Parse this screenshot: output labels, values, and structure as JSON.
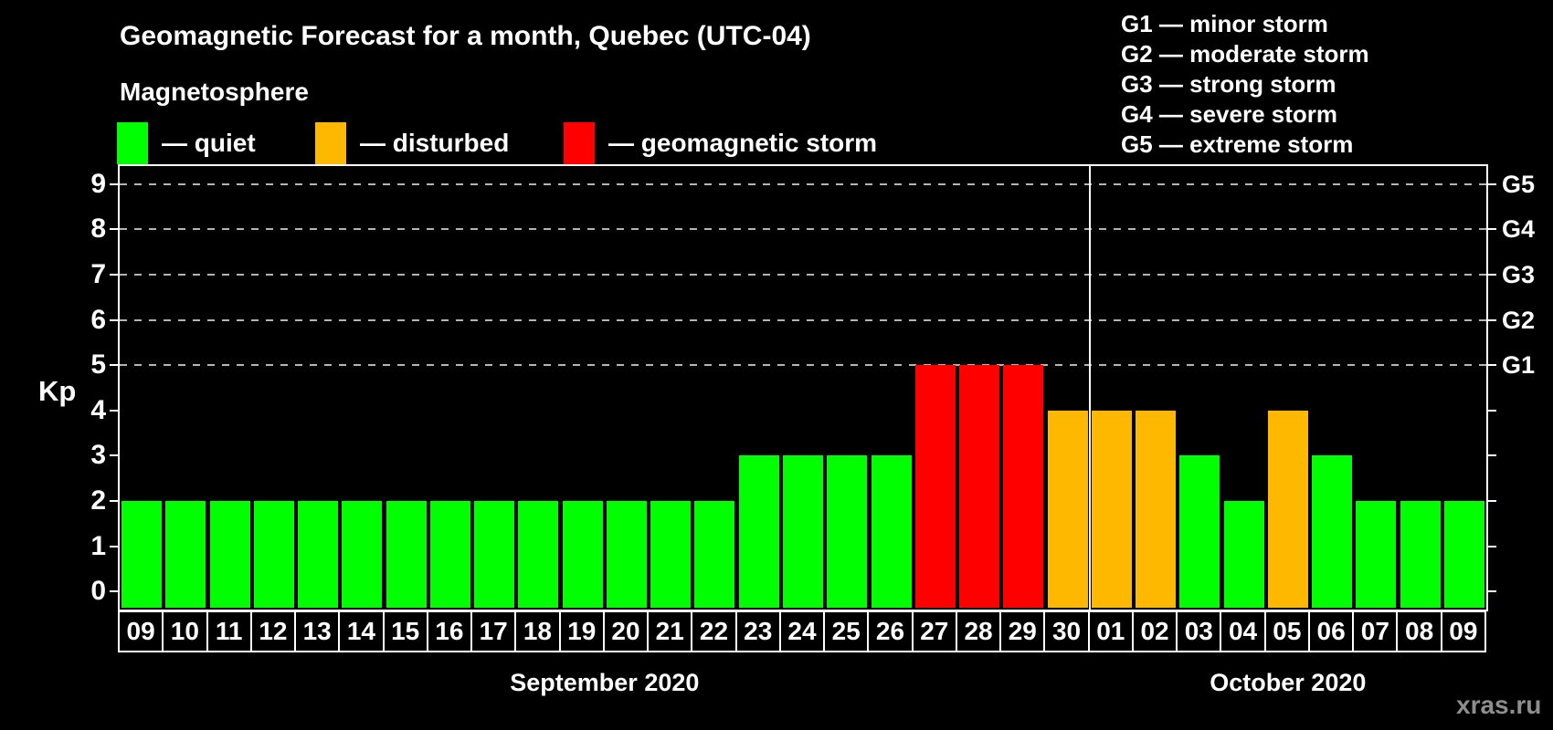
{
  "title": "Geomagnetic Forecast for a month, Quebec (UTC-04)",
  "subtitle": "Magnetosphere",
  "legend": {
    "items": [
      {
        "key": "quiet",
        "label": "— quiet",
        "color": "#00ff00"
      },
      {
        "key": "disturbed",
        "label": "— disturbed",
        "color": "#ffb800"
      },
      {
        "key": "storm",
        "label": "— geomagnetic storm",
        "color": "#ff0000"
      }
    ]
  },
  "g_legend": [
    "G1 — minor storm",
    "G2 — moderate storm",
    "G3 — strong storm",
    "G4 — severe storm",
    "G5 — extreme storm"
  ],
  "axis": {
    "y_label": "Kp",
    "y_ticks": [
      0,
      1,
      2,
      3,
      4,
      5,
      6,
      7,
      8,
      9
    ],
    "right_labels": [
      {
        "kp": 5,
        "label": "G1"
      },
      {
        "kp": 6,
        "label": "G2"
      },
      {
        "kp": 7,
        "label": "G3"
      },
      {
        "kp": 8,
        "label": "G4"
      },
      {
        "kp": 9,
        "label": "G5"
      }
    ]
  },
  "watermark": "xras.ru",
  "chart_data": {
    "type": "bar",
    "title": "Geomagnetic Forecast for a month, Quebec (UTC-04)",
    "ylabel": "Kp",
    "ylim": [
      -0.4,
      9.4
    ],
    "gridlines_at": [
      5,
      6,
      7,
      8,
      9
    ],
    "legend_position": "top-left",
    "months": [
      "September 2020",
      "October 2020"
    ],
    "days": [
      {
        "month": "September 2020",
        "day": "09",
        "kp": 2,
        "status": "quiet"
      },
      {
        "month": "September 2020",
        "day": "10",
        "kp": 2,
        "status": "quiet"
      },
      {
        "month": "September 2020",
        "day": "11",
        "kp": 2,
        "status": "quiet"
      },
      {
        "month": "September 2020",
        "day": "12",
        "kp": 2,
        "status": "quiet"
      },
      {
        "month": "September 2020",
        "day": "13",
        "kp": 2,
        "status": "quiet"
      },
      {
        "month": "September 2020",
        "day": "14",
        "kp": 2,
        "status": "quiet"
      },
      {
        "month": "September 2020",
        "day": "15",
        "kp": 2,
        "status": "quiet"
      },
      {
        "month": "September 2020",
        "day": "16",
        "kp": 2,
        "status": "quiet"
      },
      {
        "month": "September 2020",
        "day": "17",
        "kp": 2,
        "status": "quiet"
      },
      {
        "month": "September 2020",
        "day": "18",
        "kp": 2,
        "status": "quiet"
      },
      {
        "month": "September 2020",
        "day": "19",
        "kp": 2,
        "status": "quiet"
      },
      {
        "month": "September 2020",
        "day": "20",
        "kp": 2,
        "status": "quiet"
      },
      {
        "month": "September 2020",
        "day": "21",
        "kp": 2,
        "status": "quiet"
      },
      {
        "month": "September 2020",
        "day": "22",
        "kp": 2,
        "status": "quiet"
      },
      {
        "month": "September 2020",
        "day": "23",
        "kp": 3,
        "status": "quiet"
      },
      {
        "month": "September 2020",
        "day": "24",
        "kp": 3,
        "status": "quiet"
      },
      {
        "month": "September 2020",
        "day": "25",
        "kp": 3,
        "status": "quiet"
      },
      {
        "month": "September 2020",
        "day": "26",
        "kp": 3,
        "status": "quiet"
      },
      {
        "month": "September 2020",
        "day": "27",
        "kp": 5,
        "status": "storm"
      },
      {
        "month": "September 2020",
        "day": "28",
        "kp": 5,
        "status": "storm"
      },
      {
        "month": "September 2020",
        "day": "29",
        "kp": 5,
        "status": "storm"
      },
      {
        "month": "September 2020",
        "day": "30",
        "kp": 4,
        "status": "disturbed"
      },
      {
        "month": "October 2020",
        "day": "01",
        "kp": 4,
        "status": "disturbed"
      },
      {
        "month": "October 2020",
        "day": "02",
        "kp": 4,
        "status": "disturbed"
      },
      {
        "month": "October 2020",
        "day": "03",
        "kp": 3,
        "status": "quiet"
      },
      {
        "month": "October 2020",
        "day": "04",
        "kp": 2,
        "status": "quiet"
      },
      {
        "month": "October 2020",
        "day": "05",
        "kp": 4,
        "status": "disturbed"
      },
      {
        "month": "October 2020",
        "day": "06",
        "kp": 3,
        "status": "quiet"
      },
      {
        "month": "October 2020",
        "day": "07",
        "kp": 2,
        "status": "quiet"
      },
      {
        "month": "October 2020",
        "day": "08",
        "kp": 2,
        "status": "quiet"
      },
      {
        "month": "October 2020",
        "day": "09",
        "kp": 2,
        "status": "quiet"
      }
    ]
  }
}
